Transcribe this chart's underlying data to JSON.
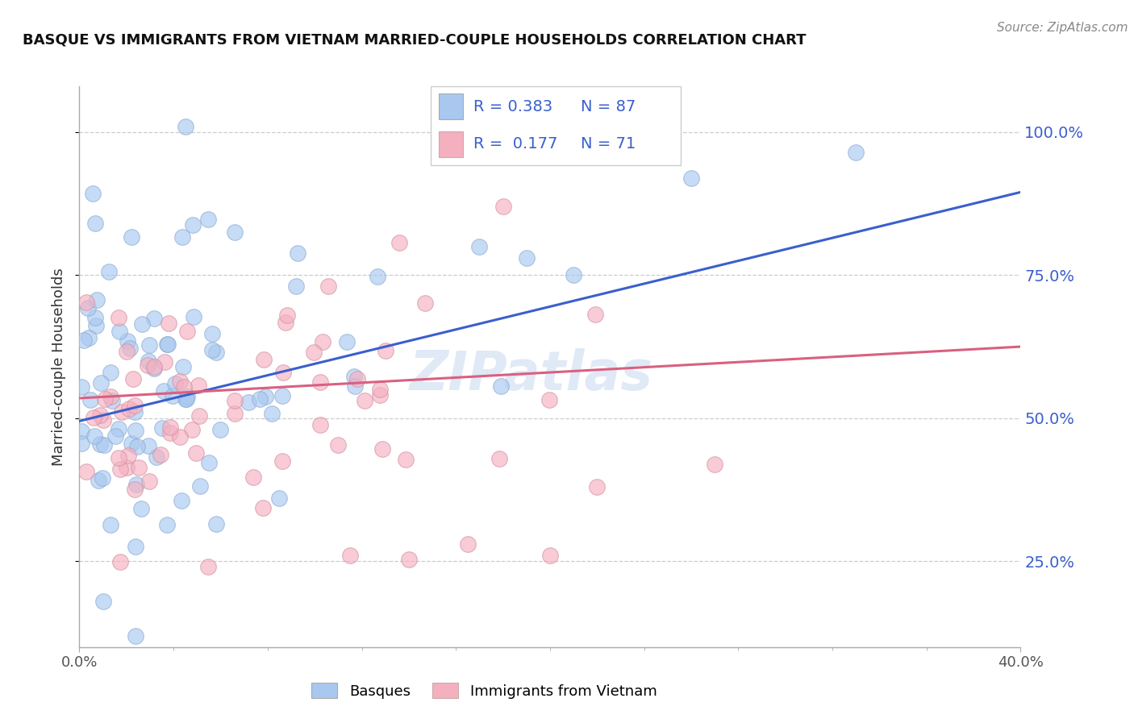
{
  "title": "BASQUE VS IMMIGRANTS FROM VIETNAM MARRIED-COUPLE HOUSEHOLDS CORRELATION CHART",
  "source_text": "Source: ZipAtlas.com",
  "ylabel": "Married-couple Households",
  "xlim": [
    0.0,
    0.4
  ],
  "ylim": [
    0.1,
    1.08
  ],
  "ytick_values": [
    0.25,
    0.5,
    0.75,
    1.0
  ],
  "legend_blue_R": "0.383",
  "legend_blue_N": "87",
  "legend_pink_R": "0.177",
  "legend_pink_N": "71",
  "blue_color": "#A8C8F0",
  "pink_color": "#F5B0C0",
  "blue_line_color": "#3A5FCD",
  "pink_line_color": "#D96080",
  "watermark": "ZIPatlas",
  "blue_line_x0": 0.0,
  "blue_line_y0": 0.495,
  "blue_line_x1": 0.4,
  "blue_line_y1": 0.895,
  "pink_line_x0": 0.0,
  "pink_line_y0": 0.535,
  "pink_line_x1": 0.4,
  "pink_line_y1": 0.625
}
